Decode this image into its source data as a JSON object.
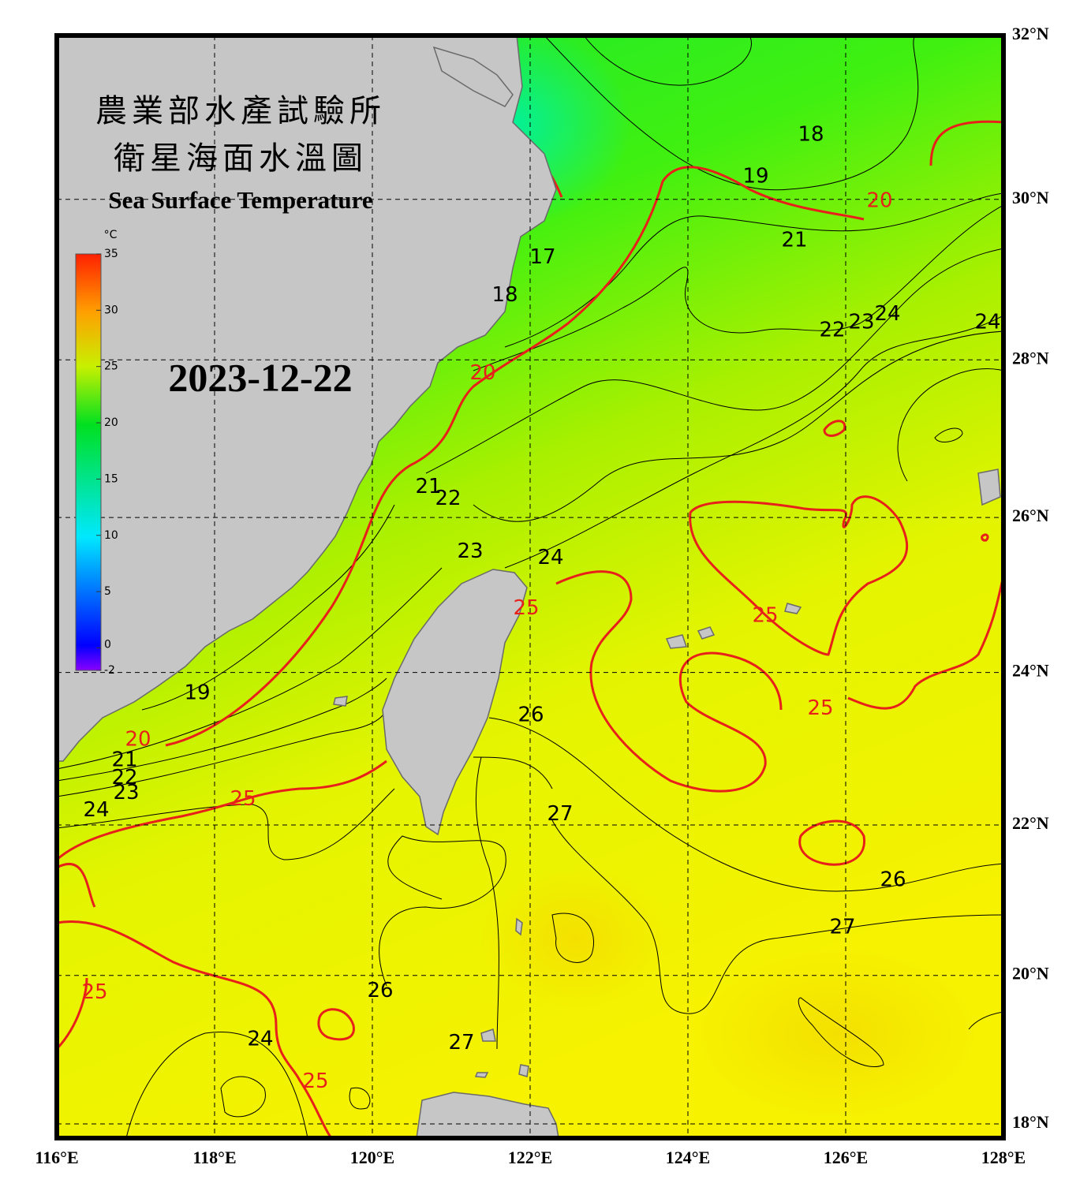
{
  "header": {
    "title_zh_1": "農業部水產試驗所",
    "title_zh_2": "衛星海面水溫圖",
    "title_en": "Sea Surface Temperature",
    "date": "2023-12-22"
  },
  "colorbar": {
    "unit": "°C",
    "lim": [
      -2,
      35
    ],
    "ticks": [
      35,
      30,
      25,
      20,
      15,
      10,
      5,
      0,
      -2
    ]
  },
  "map": {
    "xlim": [
      116,
      128
    ],
    "xticks": [
      {
        "value": 116,
        "label": "116°E"
      },
      {
        "value": 118,
        "label": "118°E"
      },
      {
        "value": 120,
        "label": "120°E"
      },
      {
        "value": 122,
        "label": "122°E"
      },
      {
        "value": 124,
        "label": "124°E"
      },
      {
        "value": 126,
        "label": "126°E"
      },
      {
        "value": 128,
        "label": "128°E"
      }
    ],
    "yticks": [
      {
        "value": 32,
        "label": "32°N"
      },
      {
        "value": 30,
        "label": "30°N"
      },
      {
        "value": 28,
        "label": "28°N"
      },
      {
        "value": 26,
        "label": "26°N"
      },
      {
        "value": 24,
        "label": "24°N"
      },
      {
        "value": 22,
        "label": "22°N"
      },
      {
        "value": 20,
        "label": "20°N"
      },
      {
        "value": 18,
        "label": "18°N"
      }
    ],
    "contour_labels": [
      {
        "level": 18,
        "lon": 125.56,
        "lat": 30.79,
        "color": "#000000"
      },
      {
        "level": 19,
        "lon": 124.86,
        "lat": 30.28,
        "color": "#000000"
      },
      {
        "level": 20,
        "lon": 126.43,
        "lat": 29.98,
        "color": "#e8201a"
      },
      {
        "level": 21,
        "lon": 125.35,
        "lat": 29.49,
        "color": "#000000"
      },
      {
        "level": 22,
        "lon": 125.83,
        "lat": 28.37,
        "color": "#000000"
      },
      {
        "level": 23,
        "lon": 126.2,
        "lat": 28.47,
        "color": "#000000"
      },
      {
        "level": 24,
        "lon": 126.53,
        "lat": 28.57,
        "color": "#000000"
      },
      {
        "level": 24,
        "lon": 127.8,
        "lat": 28.47,
        "color": "#000000"
      },
      {
        "level": 17,
        "lon": 122.16,
        "lat": 29.28,
        "color": "#000000"
      },
      {
        "level": 18,
        "lon": 121.68,
        "lat": 28.81,
        "color": "#000000"
      },
      {
        "level": 20,
        "lon": 121.4,
        "lat": 27.83,
        "color": "#e8201a"
      },
      {
        "level": 21,
        "lon": 120.71,
        "lat": 26.39,
        "color": "#000000"
      },
      {
        "level": 22,
        "lon": 120.96,
        "lat": 26.24,
        "color": "#000000"
      },
      {
        "level": 23,
        "lon": 121.24,
        "lat": 25.56,
        "color": "#000000"
      },
      {
        "level": 24,
        "lon": 122.26,
        "lat": 25.48,
        "color": "#000000"
      },
      {
        "level": 25,
        "lon": 121.95,
        "lat": 24.83,
        "color": "#e8201a"
      },
      {
        "level": 25,
        "lon": 124.98,
        "lat": 24.73,
        "color": "#e8201a"
      },
      {
        "level": 25,
        "lon": 125.68,
        "lat": 23.53,
        "color": "#e8201a"
      },
      {
        "level": 26,
        "lon": 122.01,
        "lat": 23.44,
        "color": "#000000"
      },
      {
        "level": 27,
        "lon": 122.38,
        "lat": 22.14,
        "color": "#000000"
      },
      {
        "level": 26,
        "lon": 126.6,
        "lat": 21.27,
        "color": "#000000"
      },
      {
        "level": 27,
        "lon": 125.96,
        "lat": 20.64,
        "color": "#000000"
      },
      {
        "level": 19,
        "lon": 117.78,
        "lat": 23.73,
        "color": "#000000"
      },
      {
        "level": 20,
        "lon": 117.03,
        "lat": 23.12,
        "color": "#e8201a"
      },
      {
        "level": 21,
        "lon": 116.86,
        "lat": 22.85,
        "color": "#000000"
      },
      {
        "level": 22,
        "lon": 116.86,
        "lat": 22.62,
        "color": "#000000"
      },
      {
        "level": 23,
        "lon": 116.88,
        "lat": 22.42,
        "color": "#000000"
      },
      {
        "level": 24,
        "lon": 116.5,
        "lat": 22.19,
        "color": "#000000"
      },
      {
        "level": 25,
        "lon": 118.36,
        "lat": 22.34,
        "color": "#e8201a"
      },
      {
        "level": 25,
        "lon": 116.48,
        "lat": 19.77,
        "color": "#e8201a"
      },
      {
        "level": 26,
        "lon": 120.1,
        "lat": 19.79,
        "color": "#000000"
      },
      {
        "level": 24,
        "lon": 118.58,
        "lat": 19.14,
        "color": "#000000"
      },
      {
        "level": 27,
        "lon": 121.13,
        "lat": 19.09,
        "color": "#000000"
      },
      {
        "level": 25,
        "lon": 119.28,
        "lat": 18.57,
        "color": "#e8201a"
      }
    ]
  }
}
